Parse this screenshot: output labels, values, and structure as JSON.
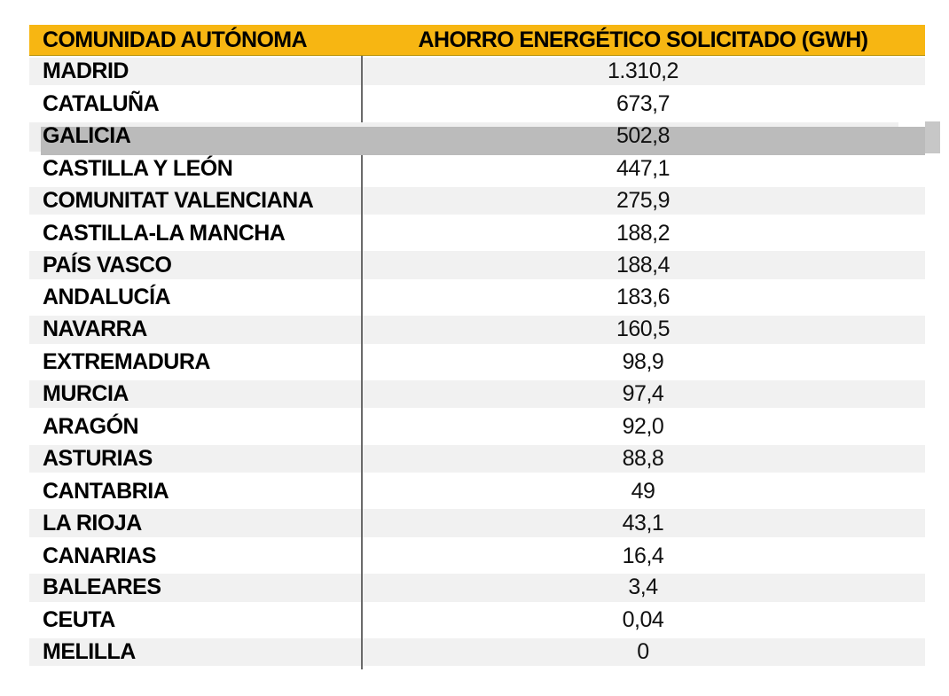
{
  "chart_data": {
    "type": "table",
    "title": "",
    "columns": [
      "COMUNIDAD AUTÓNOMA",
      "AHORRO ENERGÉTICO SOLICITADO (GWH)"
    ],
    "categories": [
      "MADRID",
      "CATALUÑA",
      "GALICIA",
      "CASTILLA Y LEÓN",
      "COMUNITAT VALENCIANA",
      "CASTILLA-LA MANCHA",
      "PAÍS VASCO",
      "ANDALUCÍA",
      "NAVARRA",
      "EXTREMADURA",
      "MURCIA",
      "ARAGÓN",
      "ASTURIAS",
      "CANTABRIA",
      "LA RIOJA",
      "CANARIAS",
      "BALEARES",
      "CEUTA",
      "MELILLA"
    ],
    "values": [
      1310.2,
      673.7,
      502.8,
      447.1,
      275.9,
      188.2,
      188.4,
      183.6,
      160.5,
      98.9,
      97.4,
      92.0,
      88.8,
      49,
      43.1,
      16.4,
      3.4,
      0.04,
      0
    ],
    "value_unit": "GWh",
    "highlighted_category": "GALICIA"
  },
  "table": {
    "header": {
      "col1": "COMUNIDAD AUTÓNOMA",
      "col2": "AHORRO ENERGÉTICO SOLICITADO (GWH)"
    },
    "rows": [
      {
        "name": "MADRID",
        "value": "1.310,2"
      },
      {
        "name": "CATALUÑA",
        "value": "673,7"
      },
      {
        "name": "GALICIA",
        "value": "502,8"
      },
      {
        "name": "CASTILLA Y LEÓN",
        "value": "447,1"
      },
      {
        "name": "COMUNITAT VALENCIANA",
        "value": "275,9"
      },
      {
        "name": "CASTILLA-LA MANCHA",
        "value": "188,2"
      },
      {
        "name": "PAÍS VASCO",
        "value": "188,4"
      },
      {
        "name": "ANDALUCÍA",
        "value": "183,6"
      },
      {
        "name": "NAVARRA",
        "value": "160,5"
      },
      {
        "name": "EXTREMADURA",
        "value": "98,9"
      },
      {
        "name": "MURCIA",
        "value": "97,4"
      },
      {
        "name": "ARAGÓN",
        "value": "92,0"
      },
      {
        "name": "ASTURIAS",
        "value": "88,8"
      },
      {
        "name": "CANTABRIA",
        "value": "49"
      },
      {
        "name": "LA RIOJA",
        "value": "43,1"
      },
      {
        "name": "CANARIAS",
        "value": "16,4"
      },
      {
        "name": "BALEARES",
        "value": "3,4"
      },
      {
        "name": "CEUTA",
        "value": "0,04"
      },
      {
        "name": "MELILLA",
        "value": "0"
      }
    ],
    "highlighted_row": "GALICIA"
  },
  "colors": {
    "header_bg": "#F7B612",
    "header_border": "#B89308",
    "stripe": "#F1F1F1",
    "highlight": "#BBBBBB",
    "highlight_tab": "#C7C7C7",
    "divider": "#6A6A6A"
  }
}
